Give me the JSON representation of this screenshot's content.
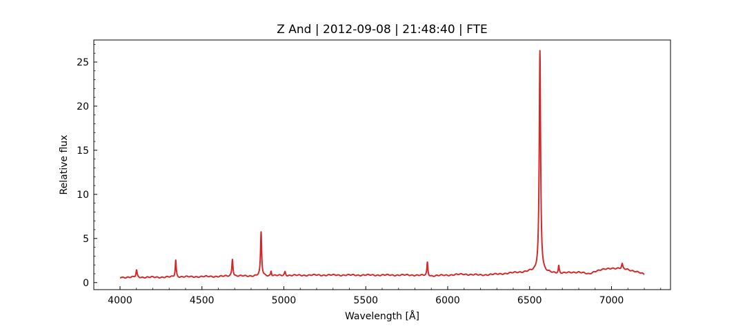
{
  "chart_data": {
    "type": "line",
    "title": "Z And | 2012-09-08 | 21:48:40 | FTE",
    "xlabel": "Wavelength [Å]",
    "ylabel": "Relative flux",
    "xlim": [
      3840,
      7360
    ],
    "ylim": [
      -0.8,
      27.5
    ],
    "xticks": [
      4000,
      4500,
      5000,
      5500,
      6000,
      6500,
      7000
    ],
    "yticks": [
      0,
      5,
      10,
      15,
      20,
      25
    ],
    "grid": false,
    "series": [
      {
        "color": "#d62728",
        "continuum": [
          [
            4000,
            0.6
          ],
          [
            4200,
            0.6
          ],
          [
            4400,
            0.65
          ],
          [
            4600,
            0.7
          ],
          [
            4800,
            0.75
          ],
          [
            5000,
            0.8
          ],
          [
            5200,
            0.85
          ],
          [
            5400,
            0.85
          ],
          [
            5600,
            0.85
          ],
          [
            5800,
            0.85
          ],
          [
            5900,
            0.75
          ],
          [
            6000,
            0.85
          ],
          [
            6100,
            0.95
          ],
          [
            6200,
            0.85
          ],
          [
            6300,
            0.95
          ],
          [
            6400,
            1.1
          ],
          [
            6500,
            1.25
          ],
          [
            6600,
            1.1
          ],
          [
            6700,
            1.05
          ],
          [
            6800,
            1.2
          ],
          [
            6860,
            0.95
          ],
          [
            6900,
            1.3
          ],
          [
            7000,
            1.65
          ],
          [
            7100,
            1.5
          ],
          [
            7200,
            0.95
          ]
        ],
        "emission_lines": [
          {
            "center": 4101,
            "peak": 1.4,
            "width": 4
          },
          {
            "center": 4340,
            "peak": 2.55,
            "width": 3.5
          },
          {
            "center": 4686,
            "peak": 2.7,
            "width": 4
          },
          {
            "center": 4861,
            "peak": 5.7,
            "width": 4
          },
          {
            "center": 4922,
            "peak": 1.3,
            "width": 3
          },
          {
            "center": 5007,
            "peak": 1.25,
            "width": 4
          },
          {
            "center": 5876,
            "peak": 2.3,
            "width": 3.5
          },
          {
            "center": 6563,
            "peak": 26.3,
            "width": 5
          },
          {
            "center": 6678,
            "peak": 1.9,
            "width": 3.5
          },
          {
            "center": 7065,
            "peak": 2.1,
            "width": 4
          }
        ]
      }
    ]
  }
}
